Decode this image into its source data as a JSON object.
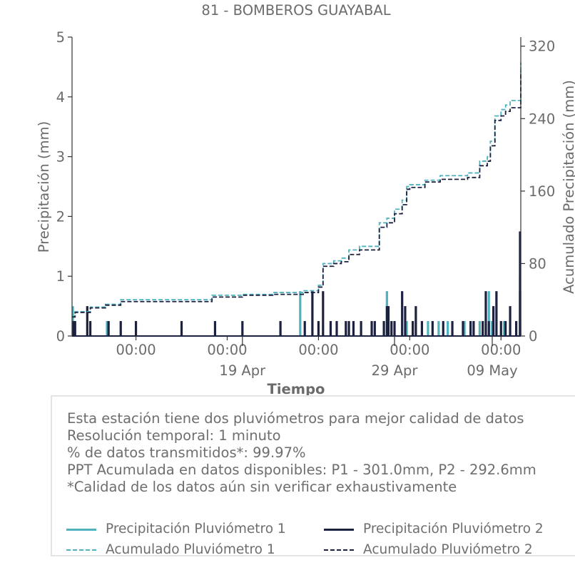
{
  "chart_data": {
    "type": "bar+line",
    "title": "81 - BOMBEROS GUAYABAL",
    "xlabel": "Tiempo",
    "ylabel": "Precipitación (mm)",
    "ylabel_right": "Acumulado Precipitación (mm)",
    "ylim": [
      0,
      5
    ],
    "ylim_right": [
      0,
      330
    ],
    "yticks": [
      0,
      1,
      2,
      3,
      4,
      5
    ],
    "yticks_right": [
      0,
      80,
      160,
      240,
      320
    ],
    "x_unit": "days since Apr 9 00:00",
    "xlim": [
      -1.2,
      28.3
    ],
    "xticks_major": [
      {
        "x": 3,
        "time": "00:00",
        "date": ""
      },
      {
        "x": 9,
        "time": "00:00",
        "date": ""
      },
      {
        "x": 15,
        "time": "00:00",
        "date": ""
      },
      {
        "x": 21,
        "time": "00:00",
        "date": ""
      },
      {
        "x": 27,
        "time": "00:00",
        "date": ""
      }
    ],
    "xticks_minor": [
      {
        "x": 10,
        "date": "19 Apr"
      },
      {
        "x": 20,
        "date": "29 Apr"
      },
      {
        "x": 30,
        "date": "09 May"
      }
    ],
    "legend": [
      {
        "label": "Precipitación Pluviómetro 1",
        "color": "#4fb3bf",
        "style": "solid"
      },
      {
        "label": "Precipitación Pluviómetro 2",
        "color": "#1c2140",
        "style": "solid"
      },
      {
        "label": "Acumulado Pluviómetro 1",
        "color": "#4fb3bf",
        "style": "dashed"
      },
      {
        "label": "Acumulado Pluviómetro 2",
        "color": "#1c2140",
        "style": "dashed"
      }
    ],
    "series": [
      {
        "name": "Precipitación Pluviómetro 1",
        "color": "#4fb3bf",
        "kind": "bar",
        "x": [
          -1.15,
          1.1,
          13.8,
          19.5,
          20.8,
          22.2,
          22.9,
          23.5,
          24.6,
          25.6,
          26.2,
          26.4,
          27.2,
          28.3
        ],
        "y": [
          0.5,
          0.25,
          0.75,
          0.75,
          0.25,
          0.25,
          0.25,
          0.25,
          0.25,
          0.25,
          0.75,
          0.25,
          0.25,
          1.0
        ]
      },
      {
        "name": "Precipitación Pluviómetro 2",
        "color": "#1c2140",
        "kind": "bar",
        "x": [
          -1.1,
          -1.0,
          -0.2,
          0.0,
          1.2,
          2.0,
          3.0,
          6.0,
          8.2,
          10.0,
          12.5,
          14.1,
          14.6,
          15.0,
          15.3,
          15.8,
          16.2,
          16.8,
          17.0,
          17.3,
          17.8,
          18.5,
          18.7,
          19.3,
          19.5,
          19.6,
          19.8,
          20.0,
          20.5,
          20.7,
          21.2,
          21.4,
          21.8,
          22.5,
          23.2,
          23.8,
          24.5,
          25.0,
          25.2,
          25.8,
          26.0,
          26.2,
          26.5,
          26.7,
          27.0,
          27.3,
          27.6,
          28.0,
          28.4,
          28.8,
          29.5
        ],
        "y": [
          0.25,
          0.25,
          0.5,
          0.25,
          0.25,
          0.25,
          0.25,
          0.25,
          0.25,
          0.25,
          0.25,
          0.25,
          0.75,
          0.25,
          0.75,
          0.25,
          0.25,
          0.25,
          0.25,
          0.25,
          0.25,
          0.25,
          0.25,
          0.25,
          0.5,
          0.5,
          0.25,
          0.25,
          0.75,
          0.5,
          0.25,
          0.5,
          0.25,
          0.25,
          0.25,
          0.25,
          0.25,
          0.25,
          0.25,
          0.25,
          0.75,
          0.25,
          0.5,
          0.75,
          0.25,
          0.25,
          0.5,
          0.25,
          0.75,
          0.25,
          1.75
        ]
      },
      {
        "name": "Acumulado Pluviómetro 1",
        "color": "#4fb3bf",
        "kind": "step",
        "x": [
          -1.2,
          -1.0,
          0.0,
          1.0,
          2.0,
          5.0,
          8.0,
          10.0,
          12.0,
          14.0,
          15.0,
          15.3,
          16.0,
          16.5,
          17.0,
          17.7,
          18.0,
          19.0,
          19.5,
          20.0,
          20.5,
          20.8,
          21.0,
          22.0,
          23.0,
          24.0,
          24.8,
          25.6,
          26.1,
          26.3,
          26.6,
          27.0,
          27.3,
          27.6,
          28.3,
          29.5,
          29.6
        ],
        "y": [
          22,
          27,
          32,
          35,
          40,
          40,
          45,
          46,
          48,
          50,
          56,
          80,
          83,
          86,
          95,
          99,
          99,
          125,
          130,
          140,
          150,
          165,
          167,
          172,
          177,
          177,
          180,
          193,
          198,
          215,
          243,
          250,
          255,
          260,
          265,
          290,
          302
        ]
      },
      {
        "name": "Acumulado Pluviómetro 2",
        "color": "#1c2140",
        "kind": "step",
        "x": [
          -1.2,
          -1.0,
          0.0,
          1.0,
          2.0,
          5.0,
          8.0,
          10.0,
          12.0,
          14.0,
          15.0,
          15.3,
          16.0,
          16.5,
          17.0,
          17.7,
          18.0,
          19.0,
          19.5,
          20.0,
          20.5,
          20.8,
          21.0,
          22.0,
          23.0,
          24.0,
          24.8,
          25.6,
          26.1,
          26.3,
          26.6,
          27.0,
          27.3,
          27.6,
          28.3,
          29.5,
          29.6
        ],
        "y": [
          21,
          26,
          31,
          34,
          38,
          38,
          43,
          45,
          46,
          48,
          54,
          77,
          80,
          82,
          90,
          95,
          95,
          120,
          125,
          135,
          145,
          162,
          164,
          170,
          173,
          173,
          175,
          188,
          193,
          210,
          238,
          243,
          248,
          252,
          258,
          280,
          292
        ]
      }
    ]
  },
  "info": {
    "lines": [
      "Esta estación tiene dos pluviómetros para mejor calidad de datos",
      "Resolución temporal: 1 minuto",
      "% de datos transmitidos*: 99.97%",
      "PPT Acumulada en datos disponibles: P1 - 301.0mm, P2 - 292.6mm",
      "*Calidad de los datos aún sin verificar exhaustivamente"
    ]
  }
}
